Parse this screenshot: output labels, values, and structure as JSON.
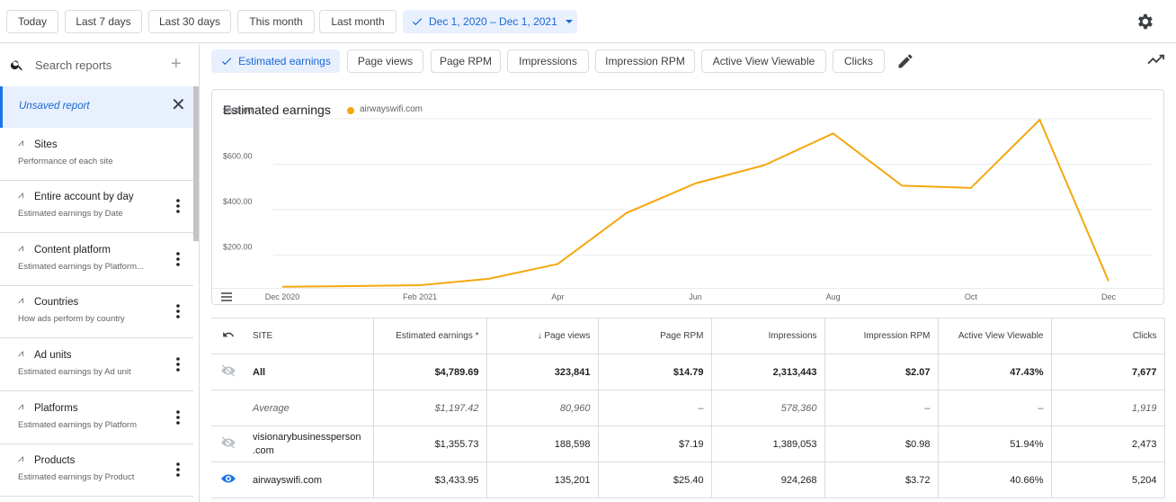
{
  "date_filters": [
    "Today",
    "Last 7 days",
    "Last 30 days",
    "This month",
    "Last month"
  ],
  "date_range": "Dec 1, 2020 – Dec 1, 2021",
  "icons": {
    "settings": "gear-icon",
    "search": "search-icon",
    "add": "plus-icon",
    "close": "close-icon",
    "edit": "pencil-icon",
    "chart_toggle": "trend-icon",
    "menu": "hamburger-icon",
    "back": "undo-icon"
  },
  "sidebar": {
    "search_placeholder": "Search reports",
    "unsaved": "Unsaved report",
    "items": [
      {
        "title": "Sites",
        "desc": "Performance of each site"
      },
      {
        "title": "Entire account by day",
        "desc": "Estimated earnings by Date"
      },
      {
        "title": "Content platform",
        "desc": "Estimated earnings by Platform..."
      },
      {
        "title": "Countries",
        "desc": "How ads perform by country"
      },
      {
        "title": "Ad units",
        "desc": "Estimated earnings by Ad unit"
      },
      {
        "title": "Platforms",
        "desc": "Estimated earnings by Platform"
      },
      {
        "title": "Products",
        "desc": "Estimated earnings by Product"
      }
    ]
  },
  "metric_chips": [
    "Estimated earnings",
    "Page views",
    "Page RPM",
    "Impressions",
    "Impression RPM",
    "Active View Viewable",
    "Clicks"
  ],
  "chart_data": {
    "type": "line",
    "title": "Estimated earnings",
    "series": [
      {
        "name": "airwayswifi.com",
        "color": "#f5a70f",
        "values": [
          5,
          8,
          12,
          40,
          105,
          330,
          460,
          540,
          680,
          450,
          440,
          740,
          30
        ]
      }
    ],
    "x_ticks": [
      "Dec 2020",
      "Feb 2021",
      "Apr",
      "Jun",
      "Aug",
      "Oct",
      "Dec"
    ],
    "y_ticks": [
      "$200.00",
      "$400.00",
      "$600.00",
      "$800.00"
    ],
    "ylim": [
      0,
      800
    ]
  },
  "table": {
    "headers": [
      "SITE",
      "Estimated earnings *",
      "Page views",
      "Page RPM",
      "Impressions",
      "Impression RPM",
      "Active View Viewable",
      "Clicks"
    ],
    "rows": [
      {
        "site": "All",
        "icon": "hidden-eye-icon",
        "vals": [
          "$4,789.69",
          "323,841",
          "$14.79",
          "2,313,443",
          "$2.07",
          "47.43%",
          "7,677"
        ]
      },
      {
        "site": "Average",
        "icon": "",
        "vals": [
          "$1,197.42",
          "80,960",
          "–",
          "578,360",
          "–",
          "–",
          "1,919"
        ]
      },
      {
        "site": "visionarybusinessperson .com",
        "icon": "hidden-eye-icon",
        "vals": [
          "$1,355.73",
          "188,598",
          "$7.19",
          "1,389,053",
          "$0.98",
          "51.94%",
          "2,473"
        ]
      },
      {
        "site": "airwayswifi.com",
        "icon": "eye-icon",
        "vals": [
          "$3,433.95",
          "135,201",
          "$25.40",
          "924,268",
          "$3.72",
          "40.66%",
          "5,204"
        ]
      }
    ]
  }
}
